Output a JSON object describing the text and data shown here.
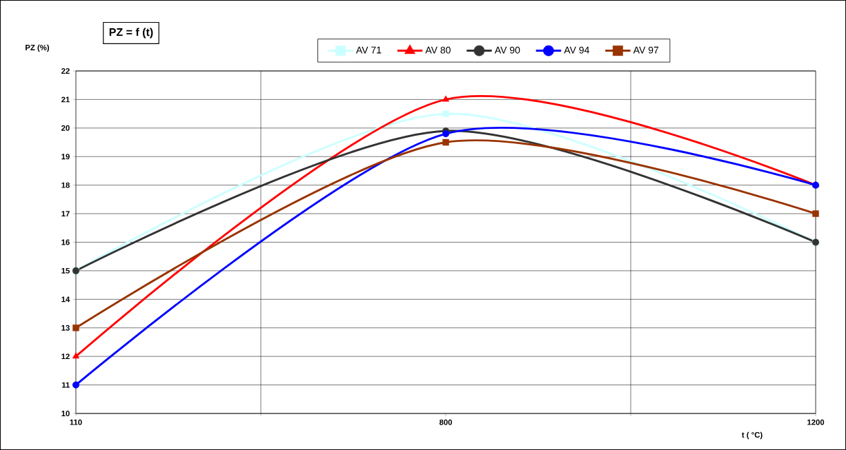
{
  "chart_data": {
    "type": "line",
    "title": "PZ = f (t)",
    "xlabel": "t ( °C)",
    "ylabel": "PZ (%)",
    "categories": [
      "110",
      "800",
      "1200"
    ],
    "series": [
      {
        "name": "AV 71",
        "color": "#ccffff",
        "marker": "square",
        "values": [
          15,
          20.5,
          16
        ]
      },
      {
        "name": "AV 80",
        "color": "#ff0000",
        "marker": "triangle",
        "values": [
          12,
          21,
          18
        ]
      },
      {
        "name": "AV 90",
        "color": "#333333",
        "marker": "circle",
        "values": [
          15,
          19.9,
          16
        ]
      },
      {
        "name": "AV 94",
        "color": "#0000ff",
        "marker": "circle",
        "values": [
          11,
          19.8,
          18
        ]
      },
      {
        "name": "AV 97",
        "color": "#993300",
        "marker": "square",
        "values": [
          13,
          19.5,
          17
        ]
      }
    ],
    "ylim": [
      10,
      22
    ],
    "yticks": [
      10,
      11,
      12,
      13,
      14,
      15,
      16,
      17,
      18,
      19,
      20,
      21,
      22
    ],
    "grid": true,
    "legend": "top"
  }
}
